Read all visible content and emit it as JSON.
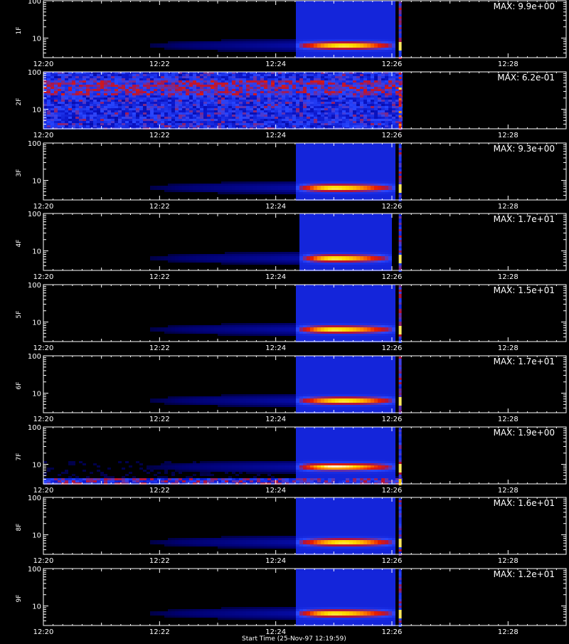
{
  "figure": {
    "footer_label": "Start Time (25-Nov-97 12:19:59)"
  },
  "colors": {
    "background": "#000000",
    "axes": "#ffffff",
    "colormap": [
      "#000000",
      "#00006e",
      "#0a14c8",
      "#2846ff",
      "#b4143c",
      "#e61e00",
      "#ff8200",
      "#ffdc00",
      "#ffffff"
    ]
  },
  "chart_data": [
    {
      "type": "heatmap",
      "channel": "1F",
      "ylabel": "1F",
      "max_label": "MAX: 9.9e+00",
      "max_value": 9.9,
      "y_scale": "log",
      "ylim": [
        3,
        100
      ],
      "yticks": [
        "10",
        "100"
      ],
      "xticks": [
        "12:20",
        "12:22",
        "12:24",
        "12:26",
        "12:28"
      ],
      "xlim": [
        "12:20",
        "12:29"
      ],
      "data_end": "12:26:10",
      "hotspot": {
        "time_start": "12:24:30",
        "time_end": "12:25:50",
        "time_peak": "12:25:10",
        "energy": 6.3
      },
      "background": "faint",
      "grid": false
    },
    {
      "type": "heatmap",
      "channel": "2F",
      "ylabel": "2F",
      "max_label": "MAX: 6.2e-01",
      "max_value": 0.62,
      "y_scale": "log",
      "ylim": [
        3,
        100
      ],
      "yticks": [
        "10",
        "100"
      ],
      "xticks": [
        "12:20",
        "12:22",
        "12:24",
        "12:26",
        "12:28"
      ],
      "xlim": [
        "12:20",
        "12:29"
      ],
      "data_end": "12:26:10",
      "hotspot": null,
      "background": "noisy",
      "grid": false
    },
    {
      "type": "heatmap",
      "channel": "3F",
      "ylabel": "3F",
      "max_label": "MAX: 9.3e+00",
      "max_value": 9.3,
      "y_scale": "log",
      "ylim": [
        3,
        100
      ],
      "yticks": [
        "10",
        "100"
      ],
      "xticks": [
        "12:20",
        "12:22",
        "12:24",
        "12:26",
        "12:28"
      ],
      "xlim": [
        "12:20",
        "12:29"
      ],
      "data_end": "12:26:10",
      "hotspot": {
        "time_start": "12:24:30",
        "time_end": "12:25:50",
        "time_peak": "12:25:00",
        "energy": 6.3
      },
      "background": "faint",
      "grid": false
    },
    {
      "type": "heatmap",
      "channel": "4F",
      "ylabel": "4F",
      "max_label": "MAX: 1.7e+01",
      "max_value": 17,
      "y_scale": "log",
      "ylim": [
        3,
        100
      ],
      "yticks": [
        "10",
        "100"
      ],
      "xticks": [
        "12:20",
        "12:22",
        "12:24",
        "12:26",
        "12:28"
      ],
      "xlim": [
        "12:20",
        "12:29"
      ],
      "data_end": "12:26:10",
      "hotspot": {
        "time_start": "12:24:35",
        "time_end": "12:25:45",
        "time_peak": "12:25:00",
        "energy": 6.3
      },
      "background": "faint",
      "grid": false
    },
    {
      "type": "heatmap",
      "channel": "5F",
      "ylabel": "5F",
      "max_label": "MAX: 1.5e+01",
      "max_value": 15,
      "y_scale": "log",
      "ylim": [
        3,
        100
      ],
      "yticks": [
        "10",
        "100"
      ],
      "xticks": [
        "12:20",
        "12:22",
        "12:24",
        "12:26",
        "12:28"
      ],
      "xlim": [
        "12:20",
        "12:29"
      ],
      "data_end": "12:26:10",
      "hotspot": {
        "time_start": "12:24:30",
        "time_end": "12:25:50",
        "time_peak": "12:25:00",
        "energy": 6.3
      },
      "background": "faint",
      "grid": false
    },
    {
      "type": "heatmap",
      "channel": "6F",
      "ylabel": "6F",
      "max_label": "MAX: 1.7e+01",
      "max_value": 17,
      "y_scale": "log",
      "ylim": [
        3,
        100
      ],
      "yticks": [
        "10",
        "100"
      ],
      "xticks": [
        "12:20",
        "12:22",
        "12:24",
        "12:26",
        "12:28"
      ],
      "xlim": [
        "12:20",
        "12:29"
      ],
      "data_end": "12:26:10",
      "hotspot": {
        "time_start": "12:24:30",
        "time_end": "12:25:50",
        "time_peak": "12:25:10",
        "energy": 6.3
      },
      "background": "faint",
      "grid": false
    },
    {
      "type": "heatmap",
      "channel": "7F",
      "ylabel": "7F",
      "max_label": "MAX: 1.9e+00",
      "max_value": 1.9,
      "y_scale": "log",
      "ylim": [
        3,
        100
      ],
      "yticks": [
        "10",
        "100"
      ],
      "xticks": [
        "12:20",
        "12:22",
        "12:24",
        "12:26",
        "12:28"
      ],
      "xlim": [
        "12:20",
        "12:29"
      ],
      "data_end": "12:26:10",
      "hotspot": {
        "time_start": "12:24:30",
        "time_end": "12:25:50",
        "time_peak": "12:25:00",
        "energy": 8.5
      },
      "background": "low-band",
      "grid": false
    },
    {
      "type": "heatmap",
      "channel": "8F",
      "ylabel": "8F",
      "max_label": "MAX: 1.6e+01",
      "max_value": 16,
      "y_scale": "log",
      "ylim": [
        3,
        100
      ],
      "yticks": [
        "10",
        "100"
      ],
      "xticks": [
        "12:20",
        "12:22",
        "12:24",
        "12:26",
        "12:28"
      ],
      "xlim": [
        "12:20",
        "12:29"
      ],
      "data_end": "12:26:10",
      "hotspot": {
        "time_start": "12:24:30",
        "time_end": "12:25:50",
        "time_peak": "12:25:10",
        "energy": 6.3
      },
      "background": "faint",
      "grid": false
    },
    {
      "type": "heatmap",
      "channel": "9F",
      "ylabel": "9F",
      "max_label": "MAX: 1.2e+01",
      "max_value": 12,
      "y_scale": "log",
      "ylim": [
        3,
        100
      ],
      "yticks": [
        "10",
        "100"
      ],
      "xticks": [
        "12:20",
        "12:22",
        "12:24",
        "12:26",
        "12:28"
      ],
      "xlim": [
        "12:20",
        "12:29"
      ],
      "data_end": "12:26:10",
      "hotspot": {
        "time_start": "12:24:30",
        "time_end": "12:25:50",
        "time_peak": "12:25:00",
        "energy": 6.3
      },
      "background": "faint",
      "grid": false
    }
  ]
}
